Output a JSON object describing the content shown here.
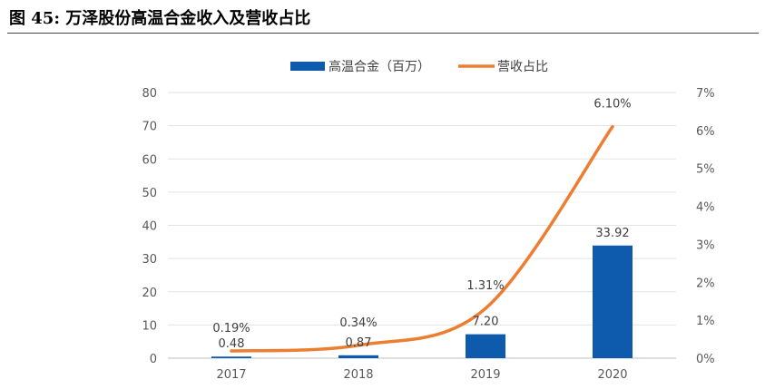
{
  "figure": {
    "title": "图  45:  万泽股份高温合金收入及营收占比"
  },
  "chart_data": {
    "type": "bar",
    "categories": [
      "2017",
      "2018",
      "2019",
      "2020"
    ],
    "series": [
      {
        "name": "高温合金（百万）",
        "type": "bar",
        "axis": "left",
        "values": [
          0.48,
          0.87,
          7.2,
          33.92
        ],
        "labels": [
          "0.48",
          "0.87",
          "7.20",
          "33.92"
        ],
        "color": "#0E5BAE"
      },
      {
        "name": "营收占比",
        "type": "line",
        "axis": "right",
        "values": [
          0.19,
          0.34,
          1.31,
          6.1
        ],
        "labels": [
          "0.19%",
          "0.34%",
          "1.31%",
          "6.10%"
        ],
        "color": "#ED7D31"
      }
    ],
    "y_left": {
      "ylim": [
        0,
        80
      ],
      "ticks": [
        0,
        10,
        20,
        30,
        40,
        50,
        60,
        70,
        80
      ],
      "tick_labels": [
        "0",
        "10",
        "20",
        "30",
        "40",
        "50",
        "60",
        "70",
        "80"
      ]
    },
    "y_right": {
      "ylim": [
        0,
        7
      ],
      "ticks": [
        0,
        1,
        2,
        3,
        4,
        5,
        6,
        7
      ],
      "tick_labels": [
        "0%",
        "1%",
        "2%",
        "3%",
        "4%",
        "5%",
        "6%",
        "7%"
      ]
    },
    "legend_position": "top-center",
    "grid": true,
    "title": "",
    "xlabel": "",
    "ylabel": ""
  }
}
